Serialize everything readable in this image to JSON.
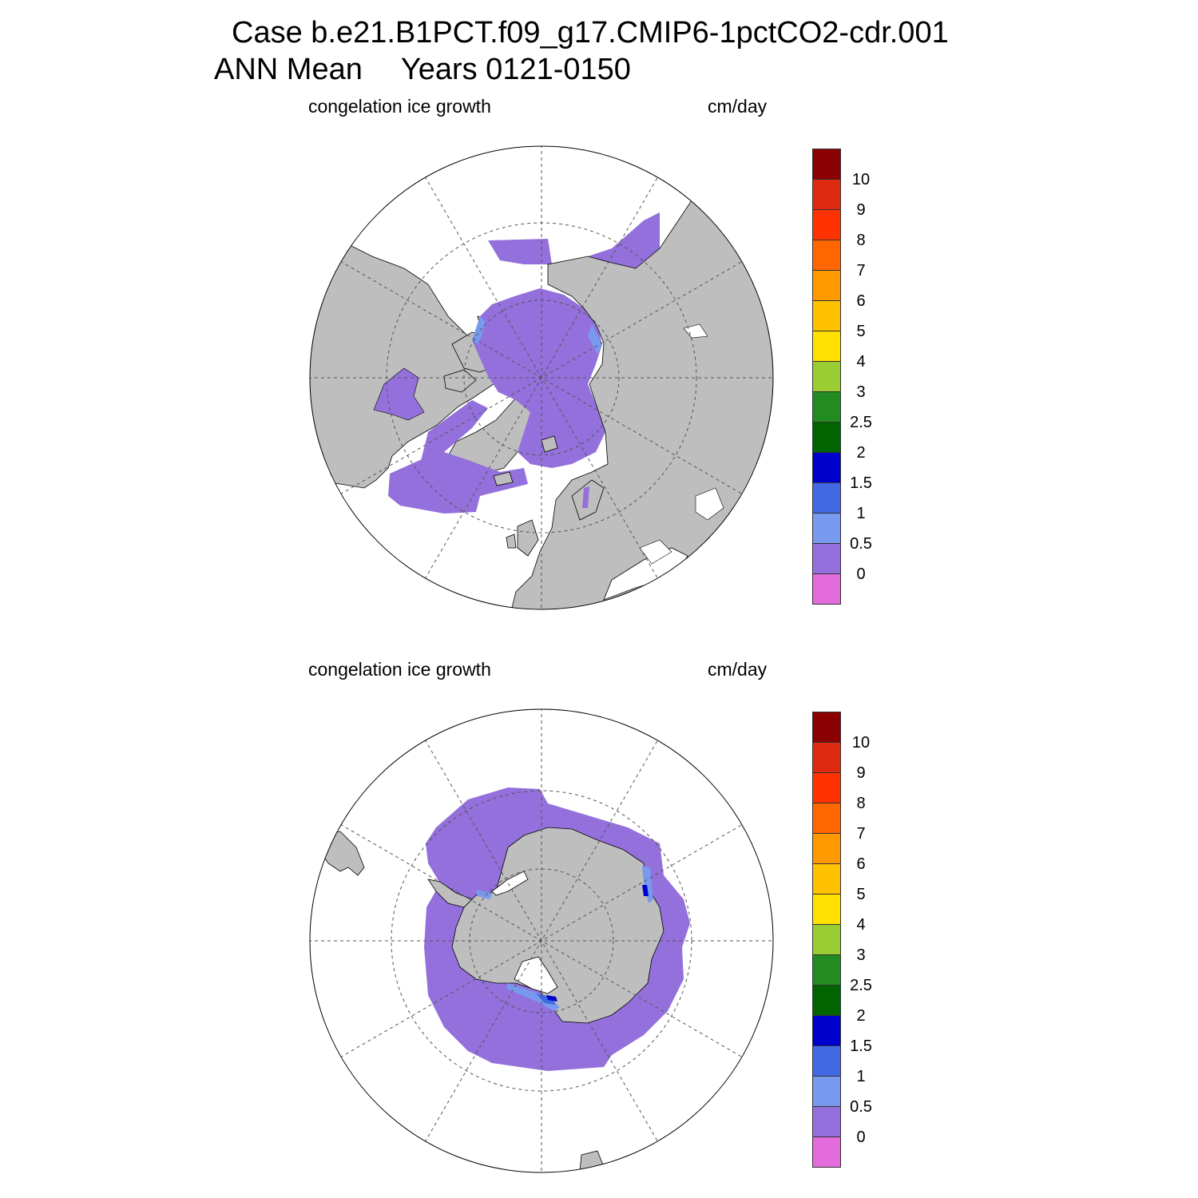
{
  "title": {
    "line1": "Case b.e21.B1PCT.f09_g17.CMIP6-1pctCO2-cdr.001",
    "season": "ANN Mean",
    "years": "Years 0121-0150"
  },
  "panels": [
    {
      "id": "north",
      "hemisphere": "Northern Hemisphere polar stereographic",
      "variable": "congelation ice growth",
      "units": "cm/day"
    },
    {
      "id": "south",
      "hemisphere": "Southern Hemisphere polar stereographic",
      "variable": "congelation ice growth",
      "units": "cm/day"
    }
  ],
  "colorbar": {
    "labels": [
      "0",
      "0.5",
      "1",
      "1.5",
      "2",
      "2.5",
      "3",
      "4",
      "5",
      "6",
      "7",
      "8",
      "9",
      "10"
    ],
    "colors": [
      "#e36bdc",
      "#9370db",
      "#7799ee",
      "#4169e1",
      "#0000cd",
      "#006400",
      "#228b22",
      "#9acd32",
      "#ffe000",
      "#ffc200",
      "#ff9900",
      "#ff6600",
      "#ff3300",
      "#dd2a10",
      "#8b0000"
    ]
  },
  "map_colors": {
    "land": "#bebebe",
    "ocean": "#ffffff",
    "ice_growth_low": "#9370db",
    "ice_growth_edge": "#7799ee",
    "ice_growth_mid": "#4169e1",
    "ice_growth_high": "#0000cd",
    "grid": "#555555"
  }
}
